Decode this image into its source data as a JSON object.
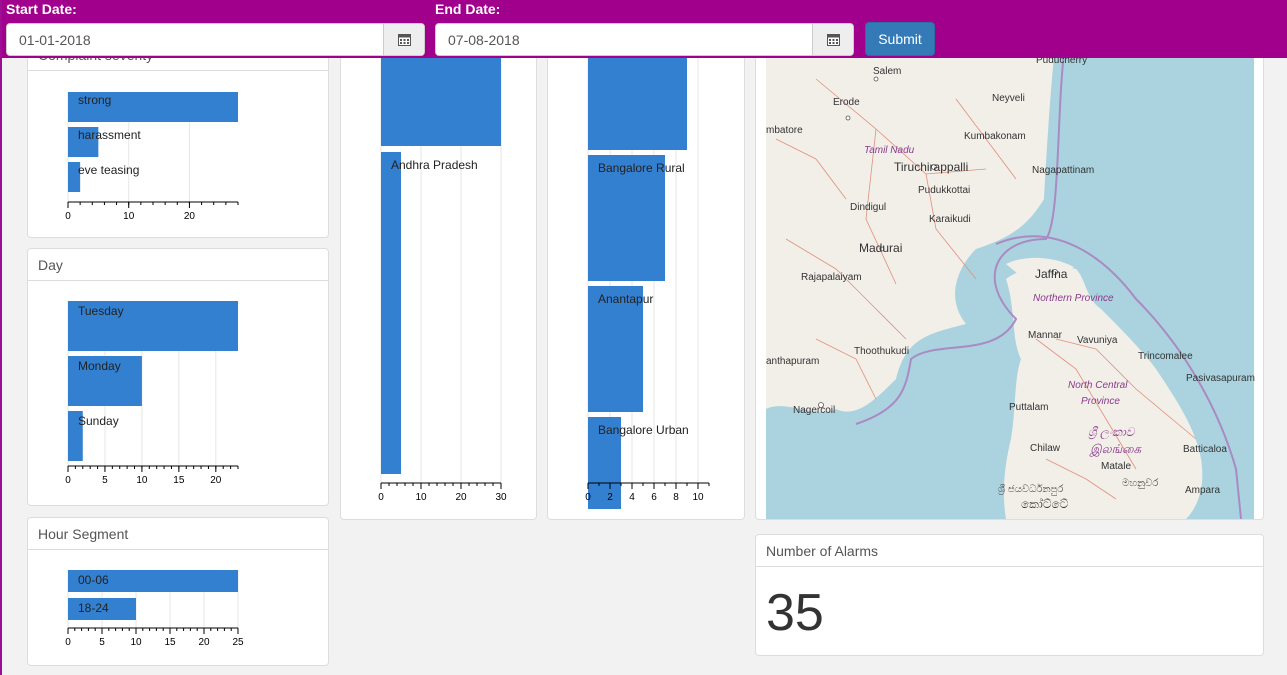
{
  "header": {
    "start_label": "Start Date:",
    "start_value": "01-01-2018",
    "end_label": "End Date:",
    "end_value": "07-08-2018",
    "submit_label": "Submit"
  },
  "colors": {
    "bar": "#3380d0",
    "header": "#a0008c",
    "button": "#337ab7"
  },
  "panels": {
    "severity": {
      "title": "Complaint severity"
    },
    "day": {
      "title": "Day"
    },
    "hour": {
      "title": "Hour Segment"
    },
    "alarms": {
      "title": "Number of Alarms",
      "value": "35"
    }
  },
  "map": {
    "labels": [
      "Puducherry",
      "Salem",
      "Erode",
      "Neyveli",
      "mbatore",
      "Kumbakonam",
      "Tamil Nadu",
      "Tiruchirappalli",
      "Nagapattinam",
      "Pudukkottai",
      "Dindigul",
      "Karaikudi",
      "Madurai",
      "Jaffna",
      "Northern Province",
      "Rajapalaiyam",
      "Mannar",
      "Vavuniya",
      "Trincomalee",
      "Thoothukudi",
      "anthapuram",
      "Pasivasapuram",
      "North Central",
      "Province",
      "Nagercoil",
      "Puttalam",
      "ශ්‍රී ලංකාව",
      "இலங்கை",
      "Chilaw",
      "Batticaloa",
      "Matale",
      "මහනුවර",
      "ශ්‍රී ජයවර්ධනපුර",
      "කෝට්ටේ",
      "Ampara"
    ]
  },
  "chart_data": [
    {
      "type": "bar",
      "orientation": "horizontal",
      "title": "Complaint severity",
      "categories": [
        "strong",
        "harassment",
        "eve teasing"
      ],
      "values": [
        28,
        5,
        2
      ],
      "xlim": [
        0,
        28
      ],
      "ticks": [
        0,
        10,
        20
      ]
    },
    {
      "type": "bar",
      "orientation": "horizontal",
      "title": "Day",
      "categories": [
        "Tuesday",
        "Monday",
        "Sunday"
      ],
      "values": [
        23,
        10,
        2
      ],
      "xlim": [
        0,
        23
      ],
      "ticks": [
        0,
        5,
        10,
        15,
        20
      ]
    },
    {
      "type": "bar",
      "orientation": "horizontal",
      "title": "Hour Segment",
      "categories": [
        "00-06",
        "18-24"
      ],
      "values": [
        25,
        10
      ],
      "xlim": [
        0,
        25
      ],
      "ticks": [
        0,
        5,
        10,
        15,
        20,
        25
      ]
    },
    {
      "type": "bar",
      "orientation": "horizontal",
      "title": "",
      "categories": [
        "",
        "Andhra Pradesh"
      ],
      "values": [
        30,
        5
      ],
      "xlim": [
        0,
        30
      ],
      "ticks": [
        0,
        10,
        20,
        30
      ]
    },
    {
      "type": "bar",
      "orientation": "horizontal",
      "title": "",
      "categories": [
        "",
        "Bangalore Rural",
        "Anantapur",
        "Bangalore Urban"
      ],
      "values": [
        9,
        7,
        5,
        3
      ],
      "xlim": [
        0,
        11
      ],
      "ticks": [
        0,
        2,
        4,
        6,
        8,
        10
      ]
    }
  ]
}
